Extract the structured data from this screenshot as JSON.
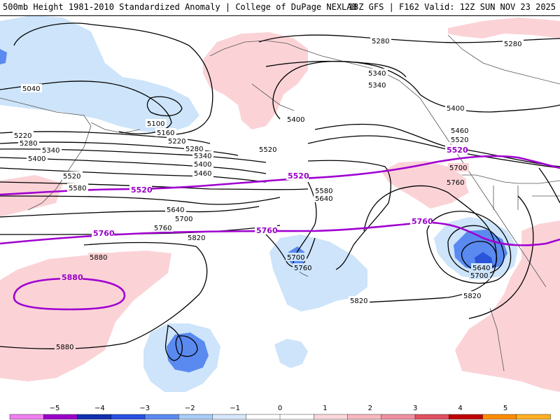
{
  "header": {
    "title": "500mb Height 1981-2010 Standardized Anomaly | College of DuPage NEXLAB",
    "valid": "18Z GFS | F162 Valid: 12Z SUN NOV 23 2025"
  },
  "contour_labels": {
    "l5280a": "5280",
    "l5340a": "5340",
    "l5340b": "5340",
    "l5280b": "5280",
    "l5040": "5040",
    "l5100": "5100",
    "l5160": "5160",
    "l5220a": "5220",
    "l5220b": "5220",
    "l5280c": "5280",
    "l5280d": "5280",
    "l5340c": "5340",
    "l5340d": "5340",
    "l5400a": "5400",
    "l5400b": "5400",
    "l5400c": "5400",
    "l5400d": "5400",
    "l5460a": "5460",
    "l5460b": "5460",
    "l5520a": "5520",
    "l5520b": "5520",
    "l5520c": "5520",
    "l5580a": "5580",
    "l5580b": "5580",
    "l5640a": "5640",
    "l5640b": "5640",
    "l5640c": "5640",
    "l5700a": "5700",
    "l5700b": "5700",
    "l5700c": "5700",
    "l5700d": "5700",
    "l5760a": "5760",
    "l5760b": "5760",
    "l5760c": "5760",
    "l5820a": "5820",
    "l5820b": "5820",
    "l5820c": "5820",
    "l5880a": "5880",
    "l5880b": "5880"
  },
  "highlight_labels": {
    "h5520a": "5520",
    "h5520b": "5520",
    "h5520c": "5520",
    "h5760a": "5760",
    "h5760b": "5760",
    "h5760c": "5760",
    "h5880": "5880"
  },
  "colorbar": {
    "ticks": [
      "−5",
      "−4",
      "−3",
      "−2",
      "−1",
      "0",
      "1",
      "2",
      "3",
      "4",
      "5"
    ],
    "colors": [
      "#f080f0",
      "#9a00c8",
      "#1030b0",
      "#2850e0",
      "#5a8af0",
      "#a8ccf8",
      "#d8e8fc",
      "#ffffff",
      "#ffffff",
      "#fcd8dc",
      "#f8b8c0",
      "#f090a0",
      "#e05060",
      "#c00000",
      "#ff8c00",
      "#ffb020"
    ]
  },
  "colors": {
    "neg1": "#cde4fa",
    "neg2": "#5a8af0",
    "neg3": "#2a55d8",
    "pos1": "#fbd3d7",
    "contour": "#000000",
    "highlight": "#a000d0"
  }
}
